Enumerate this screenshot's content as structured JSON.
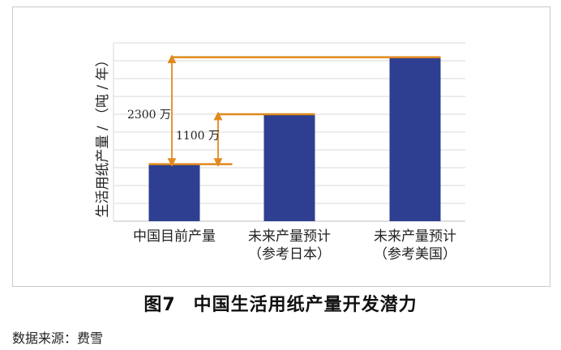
{
  "chart_data": {
    "type": "bar",
    "categories": [
      {
        "line1": "中国目前产量",
        "line2": ""
      },
      {
        "line1": "未来产量预计",
        "line2": "（参考日本）"
      },
      {
        "line1": "未来产量预计",
        "line2": "（参考美国）"
      }
    ],
    "values": [
      2.4,
      4.5,
      6.9
    ],
    "ylabel": "生活用纸产量 / （吨 / 年）",
    "ylim": [
      0,
      7.5
    ],
    "grid": true,
    "y_tick_count": 10,
    "bar_color": "#2e3f91",
    "annotation_color": "#e08a1e",
    "annotations": [
      {
        "label": "1100 万",
        "from_category": 0,
        "to_category": 1
      },
      {
        "label": "2300 万",
        "from_category": 0,
        "to_category": 2
      }
    ]
  },
  "caption": {
    "figure_number": "图7",
    "title": "中国生活用纸产量开发潜力"
  },
  "source_note": "数据来源：费雪"
}
